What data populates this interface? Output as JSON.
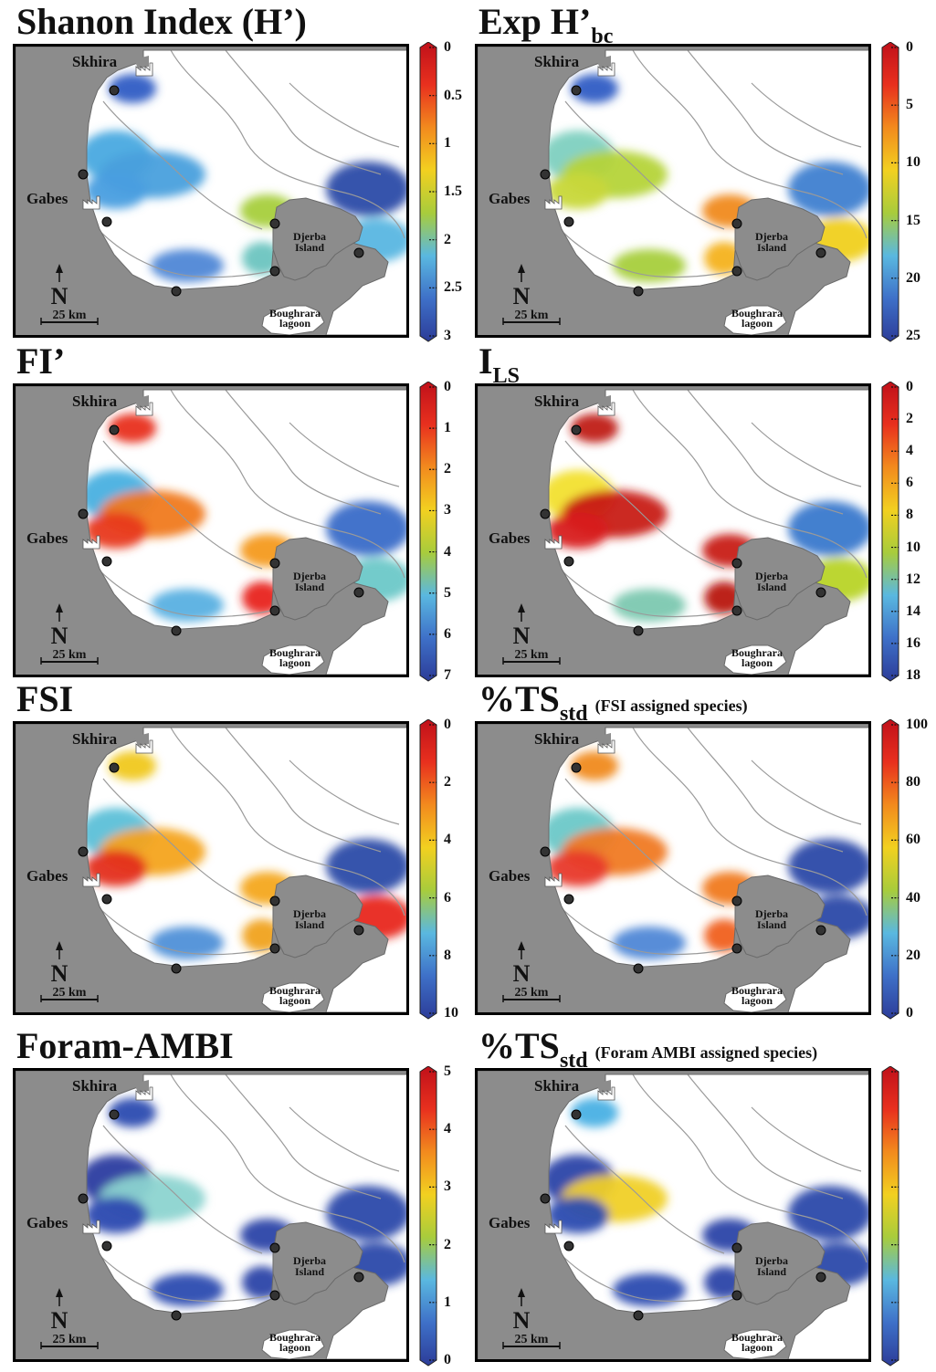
{
  "places": {
    "skhira": "Skhira",
    "gabes": "Gabes",
    "djerba_line1": "Djerba",
    "djerba_line2": "Island",
    "boughrara_line1": "Boughrara",
    "boughrara_line2": "lagoon",
    "north": "N",
    "scale": "25 km"
  },
  "panels": [
    {
      "id": "shannon",
      "title": "Shanon Index (H’)",
      "title_sub": "",
      "title_note": "",
      "ticks": [
        "0",
        "0.5",
        "1",
        "1.5",
        "2",
        "2.5",
        "3"
      ],
      "zones": {
        "skhira": "#2f5cc4",
        "gabesN": "#49a9e0",
        "gabesS": "#4a9ee0",
        "gabesSea": "#4aa0dd",
        "south": "#4f88d6",
        "djerbaW": "#a6cf3c",
        "djerbaSW": "#6cc4c0",
        "djerbaNE": "#2c4ca8",
        "djerbaE": "#58b6e2"
      }
    },
    {
      "id": "exph",
      "title": "Exp H’",
      "title_sub": "bc",
      "title_note": "",
      "ticks": [
        "0",
        "5",
        "10",
        "15",
        "20",
        "25"
      ],
      "zones": {
        "skhira": "#2f5cc4",
        "gabesN": "#7ed0c0",
        "gabesS": "#c8d83a",
        "gabesSea": "#b5d43a",
        "south": "#a6cf3c",
        "djerbaW": "#f08a1e",
        "djerbaSW": "#f4b21e",
        "djerbaNE": "#3f80d0",
        "djerbaE": "#f0d020"
      }
    },
    {
      "id": "fi",
      "title": "FI’",
      "title_sub": "",
      "title_note": "",
      "ticks": [
        "0",
        "1",
        "2",
        "3",
        "4",
        "5",
        "6",
        "7"
      ],
      "zones": {
        "skhira": "#e8301e",
        "gabesN": "#4ab0e0",
        "gabesS": "#e83a1e",
        "gabesSea": "#f07a1e",
        "south": "#58b0e2",
        "djerbaW": "#f49a1e",
        "djerbaSW": "#e8241e",
        "djerbaNE": "#3a6cc8",
        "djerbaE": "#6cc8c8"
      }
    },
    {
      "id": "ils",
      "title": "I",
      "title_sub": "LS",
      "title_note": "",
      "ticks": [
        "0",
        "2",
        "4",
        "6",
        "8",
        "10",
        "12",
        "14",
        "16",
        "18"
      ],
      "zones": {
        "skhira": "#c01a14",
        "gabesN": "#f2e030",
        "gabesS": "#d8201a",
        "gabesSea": "#c81a14",
        "south": "#7cc8b0",
        "djerbaW": "#c81a14",
        "djerbaSW": "#b81410",
        "djerbaNE": "#3a78cc",
        "djerbaE": "#b8d428"
      }
    },
    {
      "id": "fsi",
      "title": "FSI",
      "title_sub": "",
      "title_note": "",
      "ticks": [
        "0",
        "2",
        "4",
        "6",
        "8",
        "10"
      ],
      "zones": {
        "skhira": "#f0c81e",
        "gabesN": "#5cc0d8",
        "gabesS": "#e42e1e",
        "gabesSea": "#f4a41e",
        "south": "#4f90d8",
        "djerbaW": "#f4a81e",
        "djerbaSW": "#f0a21e",
        "djerbaNE": "#2c4ca8",
        "djerbaE": "#e8281e"
      }
    },
    {
      "id": "tsfsi",
      "title": "%TS",
      "title_sub": "std",
      "title_note": "(FSI assigned species)",
      "ticks": [
        "100",
        "80",
        "60",
        "40",
        "20",
        "0"
      ],
      "zones": {
        "skhira": "#f08a1e",
        "gabesN": "#6cc8c8",
        "gabesS": "#e83a2a",
        "gabesSea": "#f07a24",
        "south": "#4f88d6",
        "djerbaW": "#f07a1e",
        "djerbaSW": "#f0601e",
        "djerbaNE": "#2c48a8",
        "djerbaE": "#2c48a8"
      }
    },
    {
      "id": "ambi",
      "title": "Foram-AMBI",
      "title_sub": "",
      "title_note": "",
      "ticks": [
        "5",
        "4",
        "3",
        "2",
        "1",
        "0"
      ],
      "zones": {
        "skhira": "#2c4cb0",
        "gabesN": "#2c3ca0",
        "gabesS": "#2c4ab0",
        "gabesSea": "#8cd4d0",
        "south": "#2c4cb0",
        "djerbaW": "#2c44a8",
        "djerbaSW": "#2c44a8",
        "djerbaNE": "#2c48aa",
        "djerbaE": "#2c48aa"
      }
    },
    {
      "id": "tsambi",
      "title": "%TS",
      "title_sub": "std",
      "title_note": "(Foram AMBI assigned species)",
      "ticks": [],
      "zones": {
        "skhira": "#48b0e4",
        "gabesN": "#2c44a8",
        "gabesS": "#2c4cb0",
        "gabesSea": "#f0d028",
        "south": "#2c4cb0",
        "djerbaW": "#2c44a8",
        "djerbaSW": "#2c44a8",
        "djerbaNE": "#2c48aa",
        "djerbaE": "#2c48aa"
      }
    }
  ]
}
